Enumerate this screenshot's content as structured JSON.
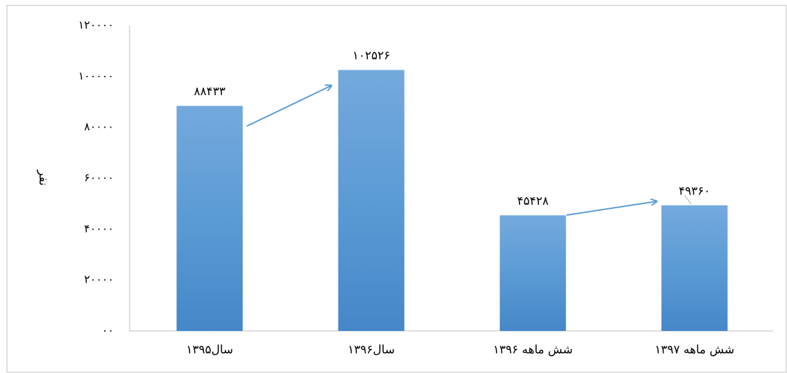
{
  "chart_data": {
    "type": "bar",
    "y_axis_label": "نفر",
    "categories": [
      "سال۱۳۹۵",
      "سال۱۳۹۶",
      "شش ماهه ۱۳۹۶",
      "شش ماهه ۱۳۹۷"
    ],
    "values": [
      88433,
      102526,
      45428,
      49360
    ],
    "value_labels": [
      "۸۸۴۳۳",
      "۱۰۲۵۲۶",
      "۴۵۴۲۸",
      "۴۹۳۶۰"
    ],
    "color": "#5b9bd5",
    "ylim": [
      0,
      120000
    ],
    "yticks": [
      {
        "value": 0,
        "label": "۰۰"
      },
      {
        "value": 20000,
        "label": "۲۰۰۰۰"
      },
      {
        "value": 40000,
        "label": "۴۰۰۰۰"
      },
      {
        "value": 60000,
        "label": "۶۰۰۰۰"
      },
      {
        "value": 80000,
        "label": "۸۰۰۰۰"
      },
      {
        "value": 100000,
        "label": "۱۰۰۰۰۰"
      },
      {
        "value": 120000,
        "label": "۱۲۰۰۰۰"
      }
    ],
    "grid": false
  }
}
